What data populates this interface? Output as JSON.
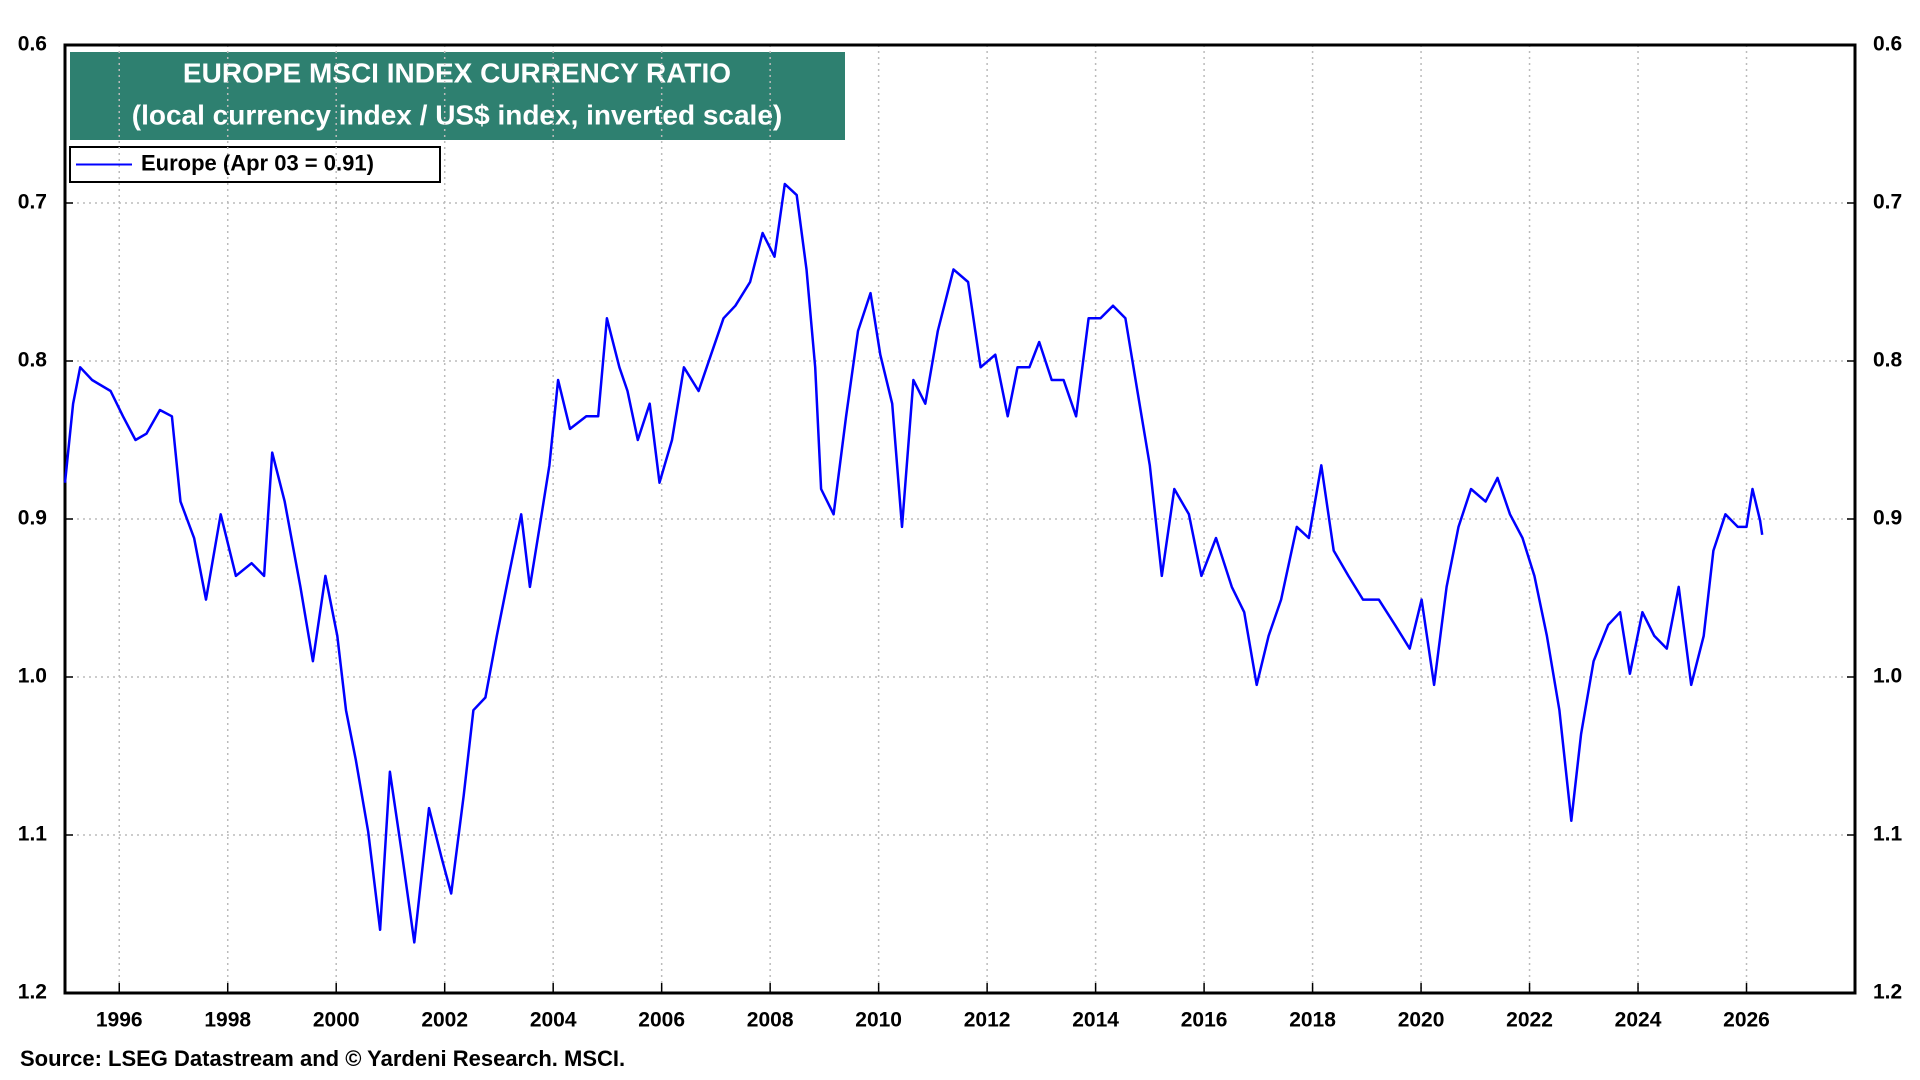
{
  "chart_data": {
    "type": "line",
    "title": "EUROPE MSCI INDEX CURRENCY RATIO",
    "subtitle": "(local currency index / US$ index, inverted scale)",
    "source": "Source: LSEG Datastream and © Yardeni Research. MSCI.",
    "inverted": true,
    "grid": true,
    "legend": "upper left",
    "xlim": [
      1995,
      2028
    ],
    "xticks": [
      1996,
      1998,
      2000,
      2002,
      2004,
      2006,
      2008,
      2010,
      2012,
      2014,
      2016,
      2018,
      2020,
      2022,
      2024,
      2026
    ],
    "ylim": [
      0.6,
      1.2
    ],
    "yticks": [
      0.6,
      0.7,
      0.8,
      0.9,
      {
        "value": 1,
        "label": "1.0"
      },
      1.1,
      1.2
    ],
    "x": [
      1995.0,
      1995.15,
      1995.28,
      1995.5,
      1995.84,
      1996.07,
      1996.3,
      1996.5,
      1996.75,
      1996.97,
      1997.13,
      1997.38,
      1997.6,
      1997.87,
      1998.15,
      1998.44,
      1998.67,
      1998.82,
      1999.05,
      1999.34,
      1999.57,
      1999.8,
      2000.02,
      2000.18,
      2000.36,
      2000.59,
      2000.81,
      2000.99,
      2001.22,
      2001.44,
      2001.71,
      2001.94,
      2002.12,
      2002.35,
      2002.53,
      2002.75,
      2002.96,
      2003.18,
      2003.41,
      2003.57,
      2003.75,
      2003.93,
      2004.09,
      2004.31,
      2004.61,
      2004.83,
      2004.99,
      2005.22,
      2005.37,
      2005.56,
      2005.78,
      2005.96,
      2006.19,
      2006.41,
      2006.68,
      2006.91,
      2007.14,
      2007.36,
      2007.63,
      2007.86,
      2008.08,
      2008.27,
      2008.49,
      2008.67,
      2008.83,
      2008.94,
      2009.17,
      2009.4,
      2009.62,
      2009.85,
      2010.03,
      2010.25,
      2010.43,
      2010.64,
      2010.86,
      2011.09,
      2011.38,
      2011.65,
      2011.88,
      2012.15,
      2012.38,
      2012.56,
      2012.78,
      2012.96,
      2013.19,
      2013.41,
      2013.64,
      2013.87,
      2014.09,
      2014.32,
      2014.55,
      2014.77,
      2015.0,
      2015.22,
      2015.45,
      2015.72,
      2015.95,
      2016.22,
      2016.51,
      2016.74,
      2016.97,
      2017.19,
      2017.42,
      2017.71,
      2017.93,
      2018.16,
      2018.39,
      2018.66,
      2018.93,
      2019.22,
      2019.52,
      2019.79,
      2020.01,
      2020.24,
      2020.47,
      2020.69,
      2020.92,
      2021.19,
      2021.41,
      2021.64,
      2021.87,
      2022.09,
      2022.32,
      2022.55,
      2022.77,
      2022.95,
      2023.18,
      2023.45,
      2023.67,
      2023.85,
      2024.08,
      2024.3,
      2024.53,
      2024.75,
      2024.98,
      2025.21,
      2025.39,
      2025.61,
      2025.84,
      2026.0,
      2026.11,
      2026.25,
      2026.29
    ],
    "series": [
      {
        "name": "Europe (Apr 03 = 0.91)",
        "color": "#0000ff",
        "values": [
          0.877,
          0.827,
          0.804,
          0.812,
          0.819,
          0.835,
          0.85,
          0.846,
          0.831,
          0.835,
          0.889,
          0.912,
          0.951,
          0.897,
          0.936,
          0.928,
          0.936,
          0.858,
          0.889,
          0.943,
          0.99,
          0.936,
          0.974,
          1.021,
          1.052,
          1.098,
          1.16,
          1.06,
          1.114,
          1.168,
          1.083,
          1.114,
          1.137,
          1.075,
          1.021,
          1.013,
          0.974,
          0.936,
          0.897,
          0.943,
          0.905,
          0.866,
          0.812,
          0.843,
          0.835,
          0.835,
          0.773,
          0.804,
          0.819,
          0.85,
          0.827,
          0.877,
          0.85,
          0.804,
          0.819,
          0.796,
          0.773,
          0.765,
          0.75,
          0.719,
          0.734,
          0.688,
          0.695,
          0.742,
          0.804,
          0.881,
          0.897,
          0.835,
          0.781,
          0.757,
          0.796,
          0.827,
          0.905,
          0.812,
          0.827,
          0.781,
          0.742,
          0.75,
          0.804,
          0.796,
          0.835,
          0.804,
          0.804,
          0.788,
          0.812,
          0.812,
          0.835,
          0.773,
          0.773,
          0.765,
          0.773,
          0.819,
          0.866,
          0.936,
          0.881,
          0.897,
          0.936,
          0.912,
          0.943,
          0.959,
          1.005,
          0.974,
          0.951,
          0.905,
          0.912,
          0.866,
          0.92,
          0.936,
          0.951,
          0.951,
          0.967,
          0.982,
          0.951,
          1.005,
          0.943,
          0.905,
          0.881,
          0.889,
          0.874,
          0.897,
          0.912,
          0.936,
          0.974,
          1.021,
          1.091,
          1.036,
          0.99,
          0.967,
          0.959,
          0.998,
          0.959,
          0.974,
          0.982,
          0.943,
          1.005,
          0.974,
          0.92,
          0.897,
          0.905,
          0.905,
          0.881,
          0.901,
          0.91
        ]
      }
    ]
  }
}
